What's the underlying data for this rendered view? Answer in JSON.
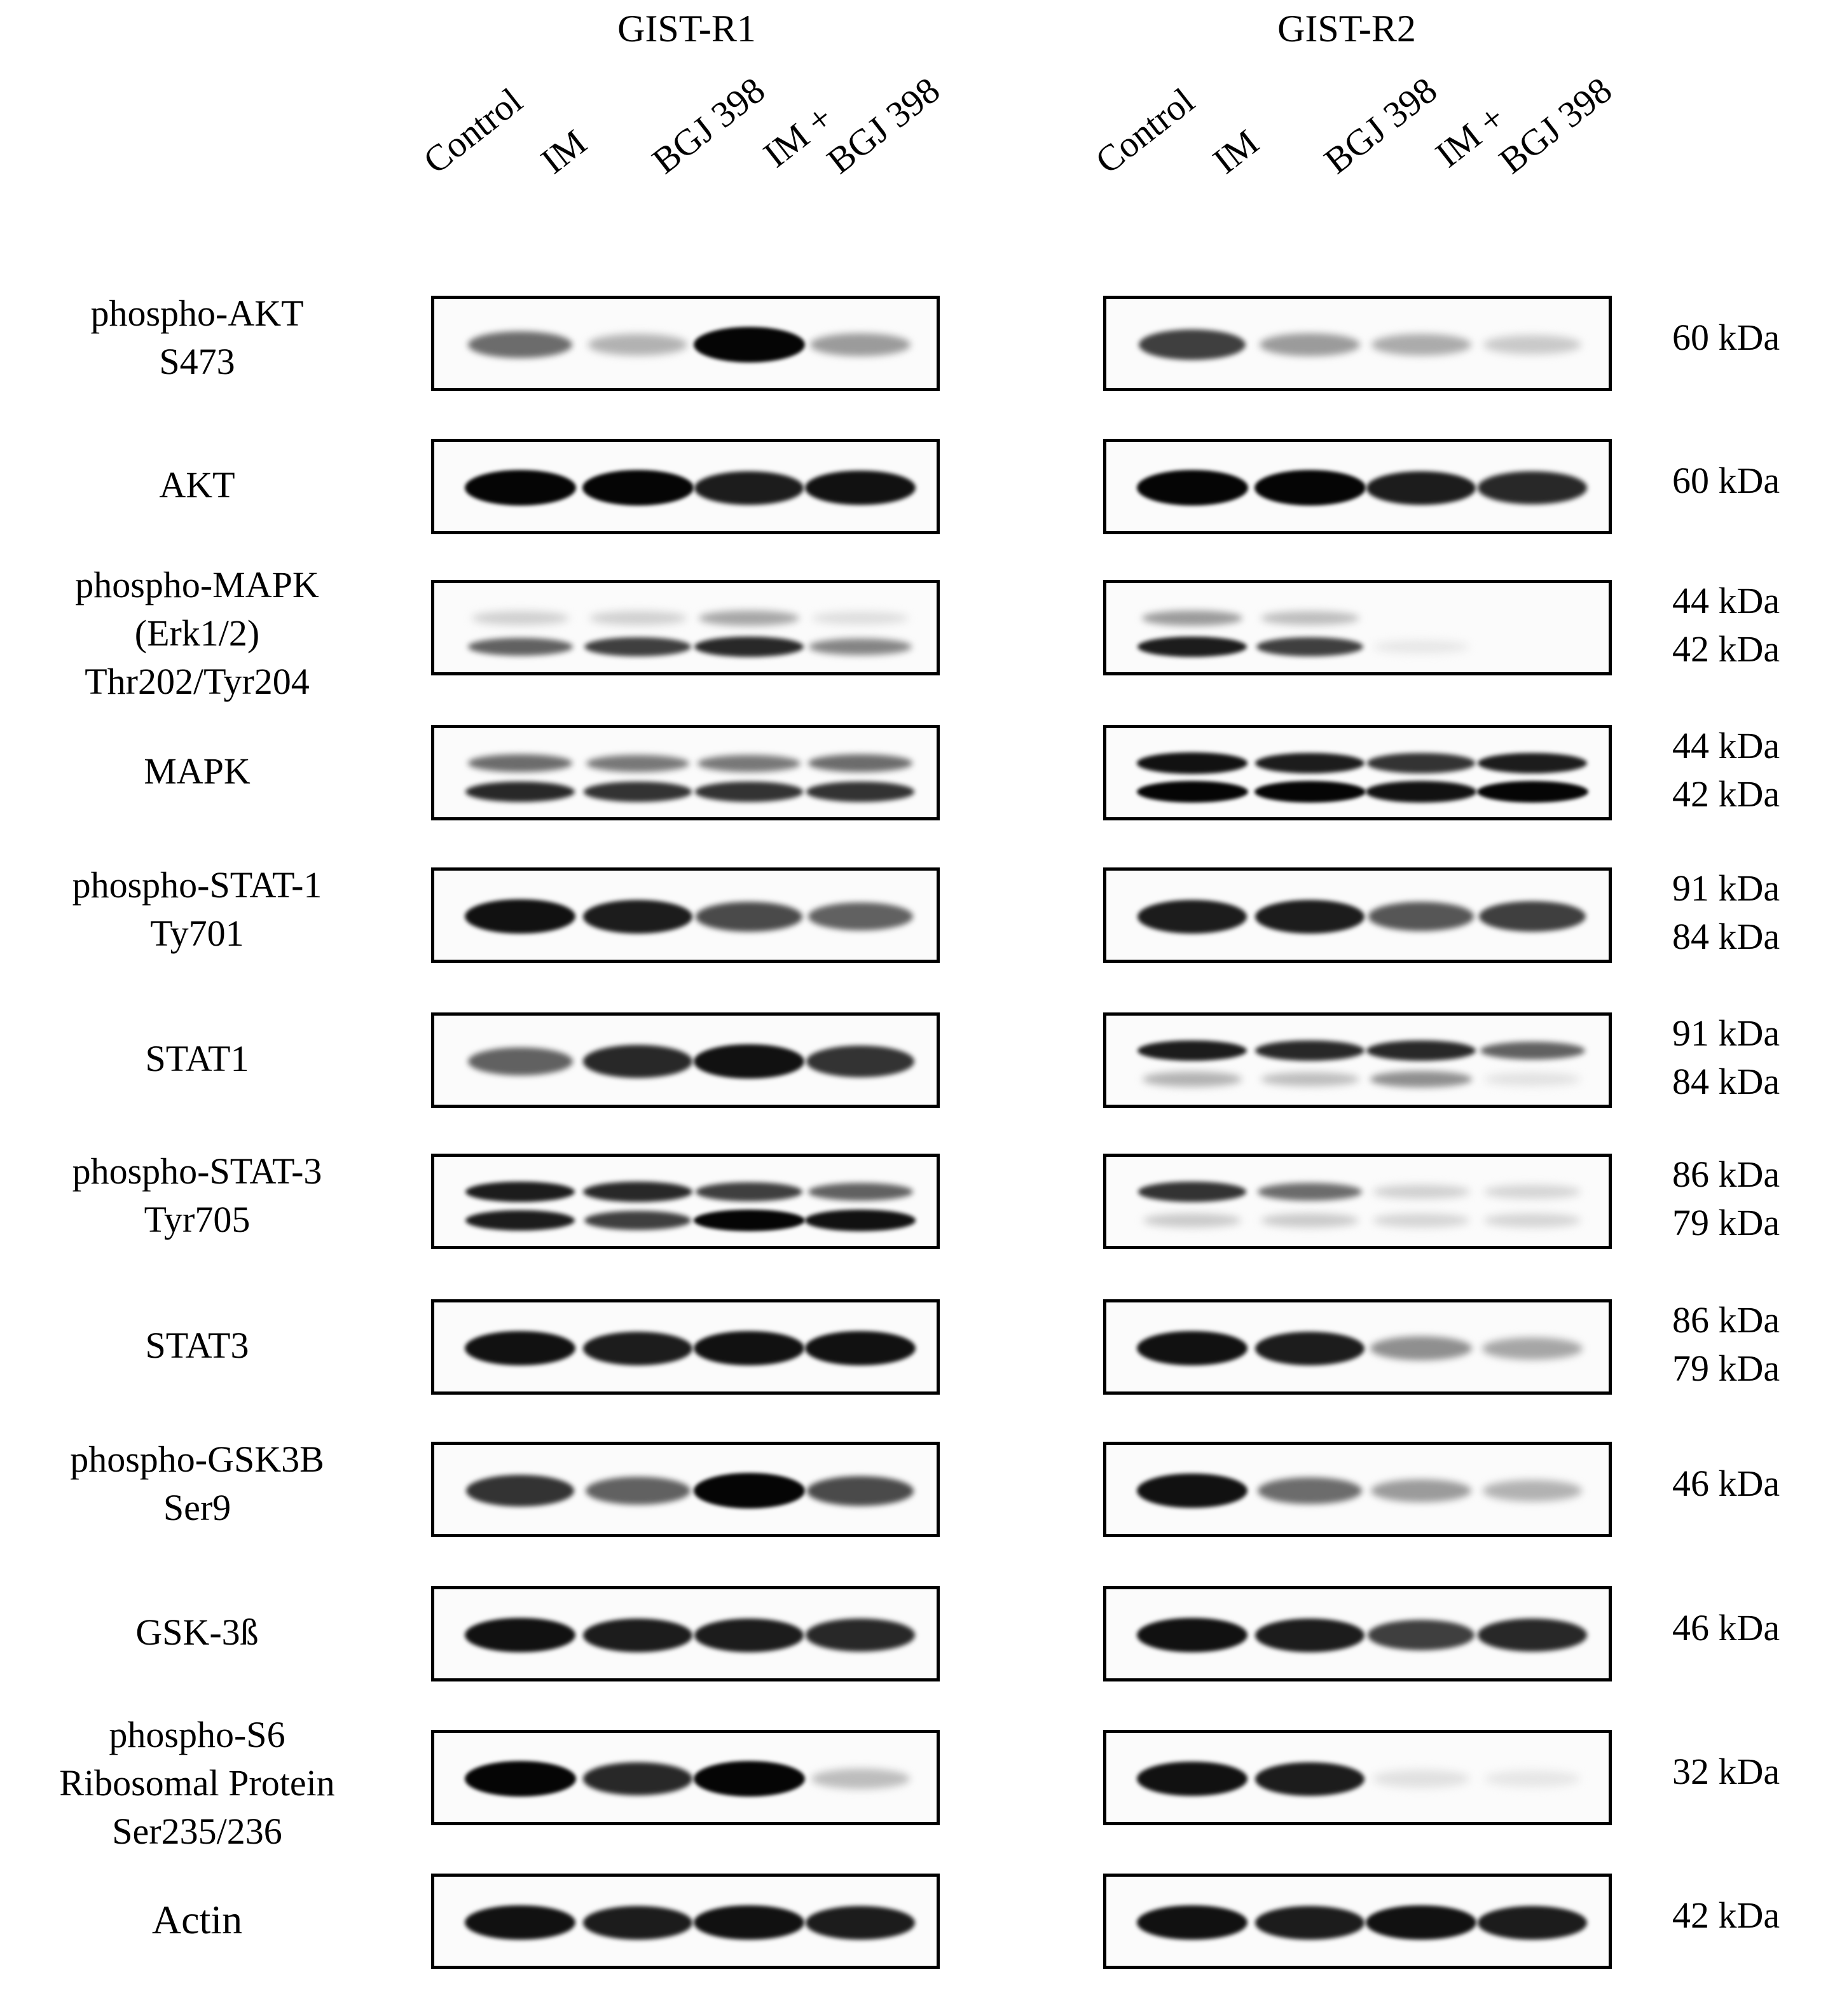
{
  "groups": [
    {
      "title": "GIST-R1",
      "lanes": [
        "Control",
        "IM",
        "BGJ 398",
        "IM +\nBGJ 398"
      ]
    },
    {
      "title": "GIST-R2",
      "lanes": [
        "Control",
        "IM",
        "BGJ 398",
        "IM +\nBGJ 398"
      ]
    }
  ],
  "rows": [
    {
      "label": "phospho-AKT\nS473",
      "kda": [
        "60 kDa"
      ],
      "r1": [
        [
          0.55,
          0.25,
          1.0,
          0.35
        ]
      ],
      "r2": [
        [
          0.75,
          0.35,
          0.28,
          0.15
        ]
      ]
    },
    {
      "label": "AKT",
      "kda": [
        "60 kDa"
      ],
      "r1": [
        [
          1.0,
          1.0,
          0.9,
          0.95
        ]
      ],
      "r2": [
        [
          1.0,
          1.0,
          0.9,
          0.85
        ]
      ]
    },
    {
      "label": "phospho-MAPK\n(Erk1/2)\nThr202/Tyr204",
      "kda": [
        "44 kDa",
        "42 kDa"
      ],
      "r1": [
        [
          0.12,
          0.12,
          0.3,
          0.06
        ],
        [
          0.6,
          0.75,
          0.85,
          0.45
        ]
      ],
      "r2": [
        [
          0.35,
          0.2,
          0.0,
          0.0
        ],
        [
          0.9,
          0.75,
          0.02,
          0.0
        ]
      ]
    },
    {
      "label": "MAPK",
      "kda": [
        "44 kDa",
        "42 kDa"
      ],
      "r1": [
        [
          0.55,
          0.5,
          0.5,
          0.55
        ],
        [
          0.85,
          0.8,
          0.8,
          0.8
        ]
      ],
      "r2": [
        [
          0.95,
          0.9,
          0.8,
          0.9
        ],
        [
          1.0,
          1.0,
          0.95,
          1.0
        ]
      ]
    },
    {
      "label": "phospho-STAT-1\nTy701",
      "kda": [
        "91 kDa",
        "84 kDa"
      ],
      "r1": [
        [
          0.95,
          0.9,
          0.7,
          0.6
        ]
      ],
      "r2": [
        [
          0.9,
          0.9,
          0.65,
          0.75
        ]
      ]
    },
    {
      "label": "STAT1",
      "kda": [
        "91 kDa",
        "84 kDa"
      ],
      "r1": [
        [
          0.6,
          0.85,
          0.95,
          0.8
        ]
      ],
      "r2": [
        [
          0.9,
          0.85,
          0.85,
          0.6
        ],
        [
          0.25,
          0.2,
          0.4,
          0.05
        ]
      ]
    },
    {
      "label": "phospho-STAT-3\nTyr705",
      "kda": [
        "86 kDa",
        "79 kDa"
      ],
      "r1": [
        [
          0.9,
          0.85,
          0.75,
          0.6
        ],
        [
          0.9,
          0.75,
          1.0,
          0.95
        ]
      ],
      "r2": [
        [
          0.8,
          0.55,
          0.12,
          0.1
        ],
        [
          0.15,
          0.15,
          0.1,
          0.1
        ]
      ]
    },
    {
      "label": "STAT3",
      "kda": [
        "86 kDa",
        "79 kDa"
      ],
      "r1": [
        [
          0.95,
          0.9,
          0.95,
          0.95
        ]
      ],
      "r2": [
        [
          0.95,
          0.9,
          0.4,
          0.3
        ]
      ]
    },
    {
      "label": "phospho-GSK3B\nSer9",
      "kda": [
        "46 kDa"
      ],
      "r1": [
        [
          0.8,
          0.6,
          1.0,
          0.7
        ]
      ],
      "r2": [
        [
          0.95,
          0.55,
          0.35,
          0.25
        ]
      ]
    },
    {
      "label": "GSK-3ß",
      "kda": [
        "46 kDa"
      ],
      "r1": [
        [
          0.95,
          0.9,
          0.9,
          0.85
        ]
      ],
      "r2": [
        [
          0.95,
          0.9,
          0.75,
          0.85
        ]
      ]
    },
    {
      "label": "phospho-S6\nRibosomal Protein\nSer235/236",
      "kda": [
        "32 kDa"
      ],
      "r1": [
        [
          1.0,
          0.85,
          1.0,
          0.2
        ]
      ],
      "r2": [
        [
          0.95,
          0.9,
          0.05,
          0.02
        ]
      ]
    },
    {
      "label": "Actin",
      "kda": [
        "42 kDa"
      ],
      "r1": [
        [
          0.95,
          0.9,
          0.95,
          0.9
        ]
      ],
      "r2": [
        [
          0.95,
          0.9,
          0.95,
          0.9
        ]
      ]
    }
  ]
}
